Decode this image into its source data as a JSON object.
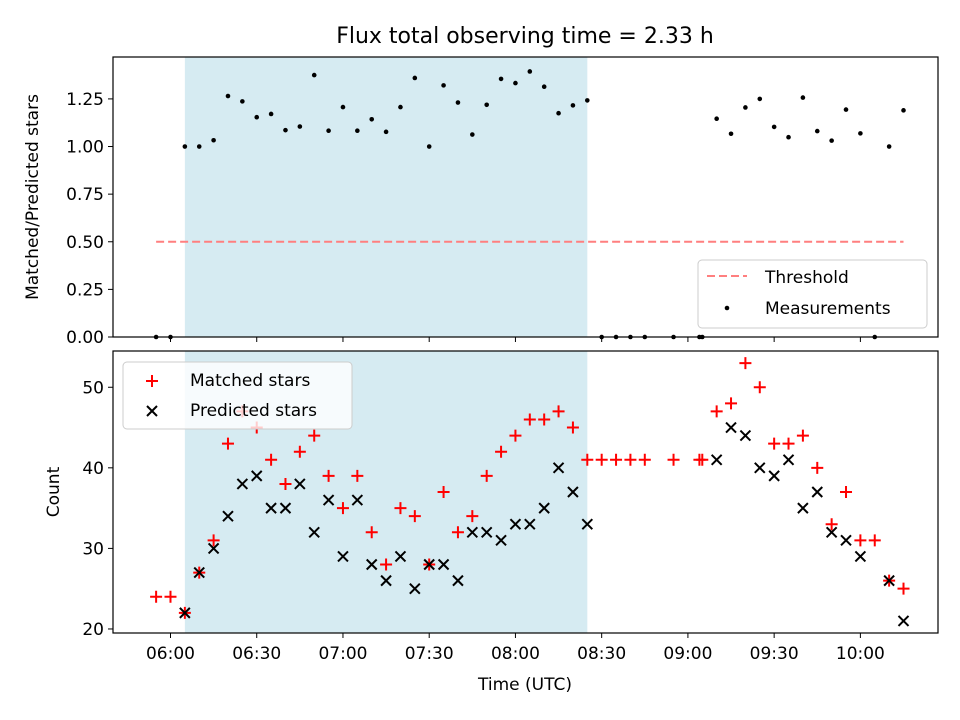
{
  "chart_data": [
    {
      "type": "scatter",
      "title": "Flux total observing time = 2.33 h",
      "ylabel": "Matched/Predicted stars",
      "xlabel": "",
      "ylim": [
        0,
        1.47
      ],
      "yticks": [
        0.0,
        0.25,
        0.5,
        0.75,
        1.0,
        1.25
      ],
      "ytick_labels": [
        "0.00",
        "0.25",
        "0.50",
        "0.75",
        "1.00",
        "1.25"
      ],
      "grid": false,
      "legend_position": "lower-right",
      "shaded_interval": [
        "06:05",
        "08:25"
      ],
      "threshold": {
        "name": "Threshold",
        "value": 0.5,
        "x_range": [
          "05:55",
          "10:15"
        ],
        "color": "#ff7f7f"
      },
      "series": [
        {
          "name": "Measurements",
          "color": "#000000",
          "points": [
            [
              "05:55",
              0.0
            ],
            [
              "06:00",
              0.0
            ],
            [
              "06:05",
              1.0
            ],
            [
              "06:10",
              1.0
            ],
            [
              "06:15",
              1.033
            ],
            [
              "06:20",
              1.265
            ],
            [
              "06:25",
              1.237
            ],
            [
              "06:30",
              1.154
            ],
            [
              "06:35",
              1.171
            ],
            [
              "06:40",
              1.086
            ],
            [
              "06:45",
              1.105
            ],
            [
              "06:50",
              1.375
            ],
            [
              "06:55",
              1.083
            ],
            [
              "07:00",
              1.207
            ],
            [
              "07:05",
              1.083
            ],
            [
              "07:10",
              1.143
            ],
            [
              "07:15",
              1.077
            ],
            [
              "07:20",
              1.207
            ],
            [
              "07:25",
              1.36
            ],
            [
              "07:30",
              1.0
            ],
            [
              "07:35",
              1.321
            ],
            [
              "07:40",
              1.231
            ],
            [
              "07:45",
              1.063
            ],
            [
              "07:50",
              1.219
            ],
            [
              "07:55",
              1.355
            ],
            [
              "08:00",
              1.333
            ],
            [
              "08:05",
              1.394
            ],
            [
              "08:10",
              1.314
            ],
            [
              "08:15",
              1.175
            ],
            [
              "08:20",
              1.216
            ],
            [
              "08:25",
              1.242
            ],
            [
              "08:30",
              0.0
            ],
            [
              "08:35",
              0.0
            ],
            [
              "08:40",
              0.0
            ],
            [
              "08:45",
              0.0
            ],
            [
              "08:55",
              0.0
            ],
            [
              "09:04",
              0.0
            ],
            [
              "09:05",
              0.0
            ],
            [
              "09:10",
              1.146
            ],
            [
              "09:15",
              1.067
            ],
            [
              "09:20",
              1.205
            ],
            [
              "09:25",
              1.25
            ],
            [
              "09:30",
              1.103
            ],
            [
              "09:35",
              1.049
            ],
            [
              "09:40",
              1.257
            ],
            [
              "09:45",
              1.081
            ],
            [
              "09:50",
              1.031
            ],
            [
              "09:55",
              1.194
            ],
            [
              "10:00",
              1.069
            ],
            [
              "10:05",
              0.0
            ],
            [
              "10:10",
              1.0
            ],
            [
              "10:15",
              1.19
            ]
          ]
        }
      ]
    },
    {
      "type": "scatter",
      "title": "",
      "xlabel": "Time (UTC)",
      "ylabel": "Count",
      "ylim": [
        19.5,
        54.5
      ],
      "yticks": [
        20,
        30,
        40,
        50
      ],
      "xticks": [
        "06:00",
        "06:30",
        "07:00",
        "07:30",
        "08:00",
        "08:30",
        "09:00",
        "09:30",
        "10:00"
      ],
      "xlim": [
        "05:40",
        "10:27"
      ],
      "grid": false,
      "legend_position": "upper-left",
      "shaded_interval": [
        "06:05",
        "08:25"
      ],
      "series": [
        {
          "name": "Matched stars",
          "marker": "+",
          "color": "#ff0000",
          "points": [
            [
              "05:55",
              24
            ],
            [
              "06:00",
              24
            ],
            [
              "06:05",
              22
            ],
            [
              "06:10",
              27
            ],
            [
              "06:15",
              31
            ],
            [
              "06:20",
              43
            ],
            [
              "06:25",
              47
            ],
            [
              "06:30",
              45
            ],
            [
              "06:35",
              41
            ],
            [
              "06:40",
              38
            ],
            [
              "06:45",
              42
            ],
            [
              "06:50",
              44
            ],
            [
              "06:55",
              39
            ],
            [
              "07:00",
              35
            ],
            [
              "07:05",
              39
            ],
            [
              "07:10",
              32
            ],
            [
              "07:15",
              28
            ],
            [
              "07:20",
              35
            ],
            [
              "07:25",
              34
            ],
            [
              "07:30",
              28
            ],
            [
              "07:35",
              37
            ],
            [
              "07:40",
              32
            ],
            [
              "07:45",
              34
            ],
            [
              "07:50",
              39
            ],
            [
              "07:55",
              42
            ],
            [
              "08:00",
              44
            ],
            [
              "08:05",
              46
            ],
            [
              "08:10",
              46
            ],
            [
              "08:15",
              47
            ],
            [
              "08:20",
              45
            ],
            [
              "08:25",
              41
            ],
            [
              "08:30",
              41
            ],
            [
              "08:35",
              41
            ],
            [
              "08:40",
              41
            ],
            [
              "08:45",
              41
            ],
            [
              "08:55",
              41
            ],
            [
              "09:04",
              41
            ],
            [
              "09:05",
              41
            ],
            [
              "09:10",
              47
            ],
            [
              "09:15",
              48
            ],
            [
              "09:20",
              53
            ],
            [
              "09:25",
              50
            ],
            [
              "09:30",
              43
            ],
            [
              "09:35",
              43
            ],
            [
              "09:40",
              44
            ],
            [
              "09:45",
              40
            ],
            [
              "09:50",
              33
            ],
            [
              "09:55",
              37
            ],
            [
              "10:00",
              31
            ],
            [
              "10:05",
              31
            ],
            [
              "10:10",
              26
            ],
            [
              "10:15",
              25
            ]
          ]
        },
        {
          "name": "Predicted stars",
          "marker": "x",
          "color": "#000000",
          "points": [
            [
              "06:05",
              22
            ],
            [
              "06:10",
              27
            ],
            [
              "06:15",
              30
            ],
            [
              "06:20",
              34
            ],
            [
              "06:25",
              38
            ],
            [
              "06:30",
              39
            ],
            [
              "06:35",
              35
            ],
            [
              "06:40",
              35
            ],
            [
              "06:45",
              38
            ],
            [
              "06:50",
              32
            ],
            [
              "06:55",
              36
            ],
            [
              "07:00",
              29
            ],
            [
              "07:05",
              36
            ],
            [
              "07:10",
              28
            ],
            [
              "07:15",
              26
            ],
            [
              "07:20",
              29
            ],
            [
              "07:25",
              25
            ],
            [
              "07:30",
              28
            ],
            [
              "07:35",
              28
            ],
            [
              "07:40",
              26
            ],
            [
              "07:45",
              32
            ],
            [
              "07:50",
              32
            ],
            [
              "07:55",
              31
            ],
            [
              "08:00",
              33
            ],
            [
              "08:05",
              33
            ],
            [
              "08:10",
              35
            ],
            [
              "08:15",
              40
            ],
            [
              "08:20",
              37
            ],
            [
              "08:25",
              33
            ],
            [
              "09:10",
              41
            ],
            [
              "09:15",
              45
            ],
            [
              "09:20",
              44
            ],
            [
              "09:25",
              40
            ],
            [
              "09:30",
              39
            ],
            [
              "09:35",
              41
            ],
            [
              "09:40",
              35
            ],
            [
              "09:45",
              37
            ],
            [
              "09:50",
              32
            ],
            [
              "09:55",
              31
            ],
            [
              "10:00",
              29
            ],
            [
              "10:10",
              26
            ],
            [
              "10:15",
              21
            ]
          ]
        }
      ]
    }
  ],
  "colors": {
    "shade": "#add8e6"
  }
}
